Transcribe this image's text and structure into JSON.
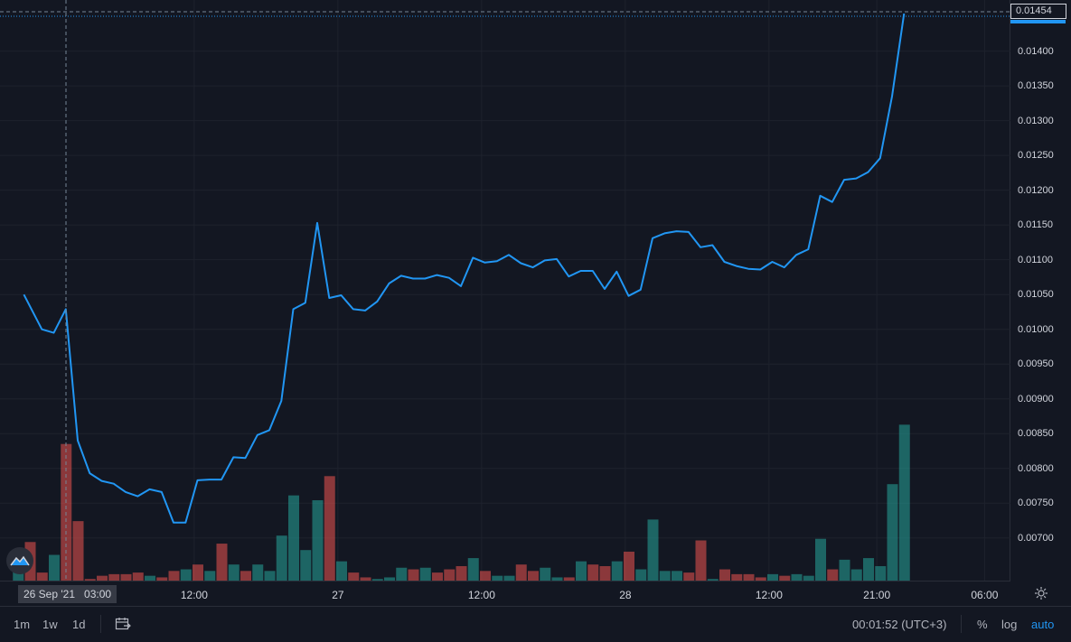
{
  "chart_data": {
    "type": "line",
    "series": [
      {
        "kind": "line",
        "color": "#2196f3",
        "points": [
          [
            -6.5,
            0.0105
          ],
          [
            -5.0,
            0.01
          ],
          [
            -4.0,
            0.00995
          ],
          [
            -3.0,
            0.01029
          ],
          [
            -2.0,
            0.0084
          ],
          [
            -1.0,
            0.00793
          ],
          [
            0.0,
            0.00782
          ],
          [
            1.0,
            0.00778
          ],
          [
            2.0,
            0.00766
          ],
          [
            3.0,
            0.0076
          ],
          [
            4.0,
            0.0077
          ],
          [
            5.0,
            0.00766
          ],
          [
            6.0,
            0.00722
          ],
          [
            7.0,
            0.00722
          ],
          [
            8.0,
            0.00783
          ],
          [
            9.0,
            0.00784
          ],
          [
            10.0,
            0.00784
          ],
          [
            11.0,
            0.00816
          ],
          [
            12.0,
            0.00815
          ],
          [
            13.0,
            0.00848
          ],
          [
            14.0,
            0.00855
          ],
          [
            15.0,
            0.00897
          ],
          [
            16.0,
            0.01029
          ],
          [
            17.0,
            0.01038
          ],
          [
            18.0,
            0.01153
          ],
          [
            19.0,
            0.01045
          ],
          [
            20.0,
            0.01049
          ],
          [
            21.0,
            0.01029
          ],
          [
            22.0,
            0.01027
          ],
          [
            23.0,
            0.0104
          ],
          [
            24.0,
            0.01066
          ],
          [
            25.0,
            0.01077
          ],
          [
            26.0,
            0.01073
          ],
          [
            27.0,
            0.01073
          ],
          [
            28.0,
            0.01078
          ],
          [
            29.0,
            0.01074
          ],
          [
            30.0,
            0.01062
          ],
          [
            31.0,
            0.01103
          ],
          [
            32.0,
            0.01096
          ],
          [
            33.0,
            0.01098
          ],
          [
            34.0,
            0.01107
          ],
          [
            35.0,
            0.01095
          ],
          [
            36.0,
            0.01089
          ],
          [
            37.0,
            0.01099
          ],
          [
            38.0,
            0.01101
          ],
          [
            39.0,
            0.01076
          ],
          [
            40.0,
            0.01084
          ],
          [
            41.0,
            0.01084
          ],
          [
            42.0,
            0.01058
          ],
          [
            43.0,
            0.01083
          ],
          [
            44.0,
            0.01048
          ],
          [
            45.0,
            0.01057
          ],
          [
            46.0,
            0.01131
          ],
          [
            47.0,
            0.01138
          ],
          [
            48.0,
            0.01141
          ],
          [
            49.0,
            0.0114
          ],
          [
            50.0,
            0.01118
          ],
          [
            51.0,
            0.01121
          ],
          [
            52.0,
            0.01097
          ],
          [
            53.0,
            0.01091
          ],
          [
            54.0,
            0.01087
          ],
          [
            55.0,
            0.01086
          ],
          [
            56.0,
            0.01097
          ],
          [
            57.0,
            0.01089
          ],
          [
            58.0,
            0.01107
          ],
          [
            59.0,
            0.01115
          ],
          [
            60.0,
            0.01192
          ],
          [
            61.0,
            0.01183
          ],
          [
            62.0,
            0.01215
          ],
          [
            63.0,
            0.01217
          ],
          [
            64.0,
            0.01226
          ],
          [
            65.0,
            0.01246
          ],
          [
            66.0,
            0.01335
          ],
          [
            67.0,
            0.01454
          ]
        ]
      }
    ],
    "volume": [
      {
        "i": -7,
        "v": 0.13,
        "c": "green"
      },
      {
        "i": -6,
        "v": 0.24,
        "c": "red"
      },
      {
        "i": -5,
        "v": 0.05,
        "c": "red"
      },
      {
        "i": -4,
        "v": 0.16,
        "c": "green"
      },
      {
        "i": -3,
        "v": 0.85,
        "c": "red"
      },
      {
        "i": -2,
        "v": 0.37,
        "c": "red"
      },
      {
        "i": -1,
        "v": 0.01,
        "c": "red"
      },
      {
        "i": 0,
        "v": 0.03,
        "c": "red"
      },
      {
        "i": 1,
        "v": 0.04,
        "c": "red"
      },
      {
        "i": 2,
        "v": 0.04,
        "c": "red"
      },
      {
        "i": 3,
        "v": 0.05,
        "c": "red"
      },
      {
        "i": 4,
        "v": 0.03,
        "c": "green"
      },
      {
        "i": 5,
        "v": 0.02,
        "c": "red"
      },
      {
        "i": 6,
        "v": 0.06,
        "c": "red"
      },
      {
        "i": 7,
        "v": 0.07,
        "c": "green"
      },
      {
        "i": 8,
        "v": 0.1,
        "c": "red"
      },
      {
        "i": 9,
        "v": 0.06,
        "c": "green"
      },
      {
        "i": 10,
        "v": 0.23,
        "c": "red"
      },
      {
        "i": 11,
        "v": 0.1,
        "c": "green"
      },
      {
        "i": 12,
        "v": 0.06,
        "c": "red"
      },
      {
        "i": 13,
        "v": 0.1,
        "c": "green"
      },
      {
        "i": 14,
        "v": 0.06,
        "c": "green"
      },
      {
        "i": 15,
        "v": 0.28,
        "c": "green"
      },
      {
        "i": 16,
        "v": 0.53,
        "c": "green"
      },
      {
        "i": 17,
        "v": 0.19,
        "c": "green"
      },
      {
        "i": 18,
        "v": 0.5,
        "c": "green"
      },
      {
        "i": 19,
        "v": 0.65,
        "c": "red"
      },
      {
        "i": 20,
        "v": 0.12,
        "c": "green"
      },
      {
        "i": 21,
        "v": 0.05,
        "c": "red"
      },
      {
        "i": 22,
        "v": 0.02,
        "c": "red"
      },
      {
        "i": 23,
        "v": 0.01,
        "c": "green"
      },
      {
        "i": 24,
        "v": 0.02,
        "c": "green"
      },
      {
        "i": 25,
        "v": 0.08,
        "c": "green"
      },
      {
        "i": 26,
        "v": 0.07,
        "c": "red"
      },
      {
        "i": 27,
        "v": 0.08,
        "c": "green"
      },
      {
        "i": 28,
        "v": 0.05,
        "c": "red"
      },
      {
        "i": 29,
        "v": 0.07,
        "c": "red"
      },
      {
        "i": 30,
        "v": 0.09,
        "c": "red"
      },
      {
        "i": 31,
        "v": 0.14,
        "c": "green"
      },
      {
        "i": 32,
        "v": 0.06,
        "c": "red"
      },
      {
        "i": 33,
        "v": 0.03,
        "c": "green"
      },
      {
        "i": 34,
        "v": 0.03,
        "c": "green"
      },
      {
        "i": 35,
        "v": 0.1,
        "c": "red"
      },
      {
        "i": 36,
        "v": 0.06,
        "c": "red"
      },
      {
        "i": 37,
        "v": 0.08,
        "c": "green"
      },
      {
        "i": 38,
        "v": 0.02,
        "c": "green"
      },
      {
        "i": 39,
        "v": 0.02,
        "c": "red"
      },
      {
        "i": 40,
        "v": 0.12,
        "c": "green"
      },
      {
        "i": 41,
        "v": 0.1,
        "c": "red"
      },
      {
        "i": 42,
        "v": 0.09,
        "c": "red"
      },
      {
        "i": 43,
        "v": 0.12,
        "c": "green"
      },
      {
        "i": 44,
        "v": 0.18,
        "c": "red"
      },
      {
        "i": 45,
        "v": 0.07,
        "c": "green"
      },
      {
        "i": 46,
        "v": 0.38,
        "c": "green"
      },
      {
        "i": 47,
        "v": 0.06,
        "c": "green"
      },
      {
        "i": 48,
        "v": 0.06,
        "c": "green"
      },
      {
        "i": 49,
        "v": 0.05,
        "c": "red"
      },
      {
        "i": 50,
        "v": 0.25,
        "c": "red"
      },
      {
        "i": 51,
        "v": 0.01,
        "c": "green"
      },
      {
        "i": 52,
        "v": 0.07,
        "c": "red"
      },
      {
        "i": 53,
        "v": 0.04,
        "c": "red"
      },
      {
        "i": 54,
        "v": 0.04,
        "c": "red"
      },
      {
        "i": 55,
        "v": 0.02,
        "c": "red"
      },
      {
        "i": 56,
        "v": 0.04,
        "c": "green"
      },
      {
        "i": 57,
        "v": 0.03,
        "c": "red"
      },
      {
        "i": 58,
        "v": 0.04,
        "c": "green"
      },
      {
        "i": 59,
        "v": 0.03,
        "c": "green"
      },
      {
        "i": 60,
        "v": 0.26,
        "c": "green"
      },
      {
        "i": 61,
        "v": 0.07,
        "c": "red"
      },
      {
        "i": 62,
        "v": 0.13,
        "c": "green"
      },
      {
        "i": 63,
        "v": 0.07,
        "c": "green"
      },
      {
        "i": 64,
        "v": 0.14,
        "c": "green"
      },
      {
        "i": 65,
        "v": 0.09,
        "c": "green"
      },
      {
        "i": 66,
        "v": 0.6,
        "c": "green"
      },
      {
        "i": 67,
        "v": 0.97,
        "c": "green"
      }
    ],
    "colors": {
      "up": "#26a69a",
      "down": "#ef5350",
      "line": "#2196f3",
      "grid": "#1e222d",
      "crosshair": "#758696"
    },
    "ylim": [
      0.0065,
      0.0147
    ],
    "y_ticks": [
      "0.01400",
      "0.01350",
      "0.01300",
      "0.01250",
      "0.01200",
      "0.01150",
      "0.01100",
      "0.01050",
      "0.01000",
      "0.00950",
      "0.00900",
      "0.00850",
      "0.00800",
      "0.00750",
      "0.00700"
    ],
    "grid": true,
    "legend": "none"
  },
  "price_axis": {
    "last_price": "0.01454"
  },
  "time_axis": {
    "ticks": [
      {
        "label": "12:00",
        "i": 7.5
      },
      {
        "label": "27",
        "i": 19.5
      },
      {
        "label": "12:00",
        "i": 31.5
      },
      {
        "label": "28",
        "i": 43.5
      },
      {
        "label": "12:00",
        "i": 55.5
      },
      {
        "label": "21:00",
        "i": 64.5
      },
      {
        "label": "06:00",
        "i": 73.5
      }
    ],
    "crosshair_date": "26 Sep '21",
    "crosshair_time": "03:00"
  },
  "toolbar": {
    "range_1m": "1m",
    "range_1w": "1w",
    "range_1d": "1d",
    "clock": "00:01:52 (UTC+3)",
    "percent": "%",
    "log": "log",
    "auto": "auto"
  },
  "icons": {
    "settings": "gear-icon",
    "date_range": "calendar-range-icon",
    "logo": "tradingview-logo-icon"
  }
}
